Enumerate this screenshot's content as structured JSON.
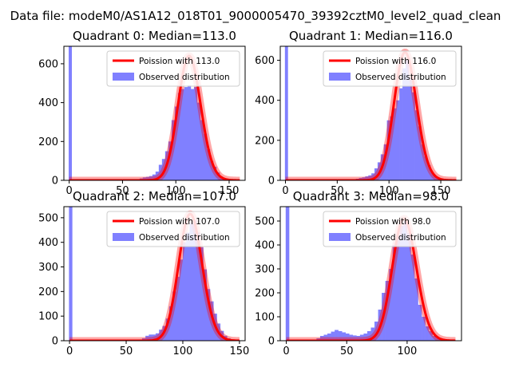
{
  "figure": {
    "suptitle": "Data file: modeM0/AS1A12_018T01_9000005470_39392cztM0_level2_quad_clean"
  },
  "colors": {
    "hist_fill": "#8080ff",
    "poisson_line": "#ff0000",
    "halo": "#ff0000"
  },
  "chart_data": [
    {
      "type": "bar",
      "title": "Quadrant 0: Median=113.0",
      "xlim": [
        -5,
        165
      ],
      "ylim": [
        0,
        690
      ],
      "xticks": [
        0,
        50,
        100,
        150
      ],
      "yticks": [
        0,
        200,
        400,
        600
      ],
      "legend": {
        "placement": "upper right",
        "entries": [
          "Poission with 113.0",
          "Observed distribution"
        ]
      },
      "median": 113.0,
      "zero_bin_height": 690,
      "hist": {
        "x": [
          60,
          63,
          66,
          69,
          72,
          75,
          78,
          81,
          84,
          87,
          90,
          93,
          96,
          99,
          102,
          105,
          108,
          111,
          114,
          117,
          120,
          123,
          126,
          129,
          132,
          135,
          138,
          141,
          144,
          147
        ],
        "y": [
          3,
          4,
          10,
          15,
          18,
          22,
          30,
          45,
          80,
          110,
          150,
          200,
          310,
          380,
          450,
          470,
          480,
          490,
          470,
          480,
          400,
          310,
          240,
          160,
          100,
          70,
          40,
          20,
          10,
          5
        ]
      },
      "poisson": {
        "mean": 113.0,
        "peak": 640,
        "range": [
          0,
          160
        ]
      }
    },
    {
      "type": "bar",
      "title": "Quadrant 1: Median=116.0",
      "xlim": [
        -5,
        170
      ],
      "ylim": [
        0,
        670
      ],
      "xticks": [
        0,
        50,
        100,
        150
      ],
      "yticks": [
        0,
        200,
        400,
        600
      ],
      "legend": {
        "placement": "upper right",
        "entries": [
          "Poission with 116.0",
          "Observed distribution"
        ]
      },
      "median": 116.0,
      "zero_bin_height": 670,
      "hist": {
        "x": [
          65,
          68,
          71,
          74,
          77,
          80,
          83,
          86,
          89,
          92,
          95,
          98,
          101,
          104,
          107,
          110,
          113,
          116,
          119,
          122,
          125,
          128,
          131,
          134,
          137,
          140,
          143,
          146,
          149
        ],
        "y": [
          5,
          8,
          12,
          15,
          20,
          25,
          35,
          60,
          90,
          130,
          180,
          300,
          320,
          360,
          400,
          460,
          560,
          600,
          510,
          440,
          350,
          270,
          180,
          120,
          75,
          40,
          20,
          10,
          5
        ]
      },
      "poisson": {
        "mean": 116.0,
        "peak": 640,
        "range": [
          0,
          165
        ]
      }
    },
    {
      "type": "bar",
      "title": "Quadrant 2: Median=107.0",
      "xlim": [
        -5,
        155
      ],
      "ylim": [
        0,
        545
      ],
      "xticks": [
        0,
        50,
        100,
        150
      ],
      "yticks": [
        0,
        100,
        200,
        300,
        400,
        500
      ],
      "legend": {
        "placement": "upper right",
        "entries": [
          "Poission with 107.0",
          "Observed distribution"
        ]
      },
      "median": 107.0,
      "zero_bin_height": 545,
      "hist": {
        "x": [
          58,
          61,
          64,
          67,
          70,
          73,
          76,
          79,
          82,
          85,
          88,
          91,
          94,
          97,
          100,
          103,
          106,
          109,
          112,
          115,
          118,
          121,
          124,
          127,
          130,
          133,
          136,
          139,
          142,
          145
        ],
        "y": [
          3,
          5,
          10,
          20,
          25,
          25,
          30,
          45,
          60,
          90,
          140,
          200,
          260,
          330,
          400,
          440,
          480,
          490,
          440,
          380,
          290,
          210,
          160,
          110,
          70,
          40,
          20,
          10,
          5,
          2
        ]
      },
      "poisson": {
        "mean": 107.0,
        "peak": 515,
        "range": [
          0,
          150
        ]
      }
    },
    {
      "type": "bar",
      "title": "Quadrant 3: Median=98.0",
      "xlim": [
        -5,
        145
      ],
      "ylim": [
        0,
        560
      ],
      "xticks": [
        0,
        50,
        100
      ],
      "yticks": [
        0,
        100,
        200,
        300,
        400,
        500
      ],
      "legend": {
        "placement": "upper right",
        "entries": [
          "Poission with 98.0",
          "Observed distribution"
        ]
      },
      "median": 98.0,
      "zero_bin_height": 560,
      "hist": {
        "x": [
          25,
          28,
          31,
          34,
          37,
          40,
          43,
          46,
          49,
          52,
          55,
          58,
          61,
          64,
          67,
          70,
          73,
          76,
          79,
          82,
          85,
          88,
          91,
          94,
          97,
          100,
          103,
          106,
          109,
          112,
          115,
          118,
          121,
          124,
          127,
          130
        ],
        "y": [
          10,
          20,
          25,
          30,
          38,
          45,
          40,
          35,
          30,
          25,
          22,
          20,
          25,
          30,
          40,
          55,
          80,
          130,
          200,
          250,
          300,
          400,
          440,
          480,
          500,
          450,
          360,
          260,
          150,
          100,
          60,
          40,
          20,
          10,
          5,
          2
        ]
      },
      "poisson": {
        "mean": 98.0,
        "peak": 510,
        "range": [
          0,
          140
        ]
      }
    }
  ]
}
